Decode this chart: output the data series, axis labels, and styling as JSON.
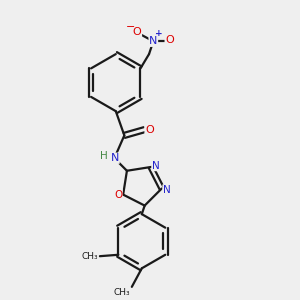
{
  "background_color": "#efefef",
  "bond_color": "#1a1a1a",
  "atom_colors": {
    "O": "#dd0000",
    "N": "#2222cc",
    "C": "#1a1a1a",
    "H": "#448844"
  },
  "figsize": [
    3.0,
    3.0
  ],
  "dpi": 100
}
